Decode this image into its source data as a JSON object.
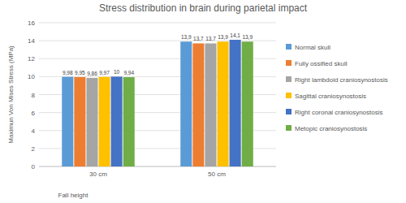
{
  "chart_data": {
    "type": "bar",
    "title": "Stress distribution in brain during parietal impact",
    "x_label": "Fall height",
    "y_label": "Maximun Von Mises Stress (MPa)",
    "categories": [
      "30 cm",
      "50 cm"
    ],
    "series": [
      {
        "name": "Normal skull",
        "color": "#5b9bd5",
        "values": [
          9.98,
          13.9
        ],
        "value_labels": [
          "9,98",
          "13,9"
        ]
      },
      {
        "name": "Fully ossified skull",
        "color": "#ed7d31",
        "values": [
          9.95,
          13.7
        ],
        "value_labels": [
          "9,95",
          "13,7"
        ]
      },
      {
        "name": "Right lambdoid craniosynostosis",
        "color": "#a5a5a5",
        "values": [
          9.86,
          13.7
        ],
        "value_labels": [
          "9,86",
          "13,7"
        ]
      },
      {
        "name": "Sagittal craniosynostosis",
        "color": "#ffc000",
        "values": [
          9.97,
          13.9
        ],
        "value_labels": [
          "9,97",
          "13,9"
        ]
      },
      {
        "name": "Right coronal craniosynostosis",
        "color": "#4472c4",
        "values": [
          10,
          14.1
        ],
        "value_labels": [
          "10",
          "14,1"
        ]
      },
      {
        "name": "Metopic craniosynostosis",
        "color": "#70ad47",
        "values": [
          9.94,
          13.9
        ],
        "value_labels": [
          "9,94",
          "13,9"
        ]
      }
    ],
    "ylim": [
      0,
      16
    ],
    "yticks": [
      0,
      2,
      4,
      6,
      8,
      10,
      12,
      14,
      16
    ],
    "grid": true,
    "legend": "right",
    "data_labels": true
  }
}
